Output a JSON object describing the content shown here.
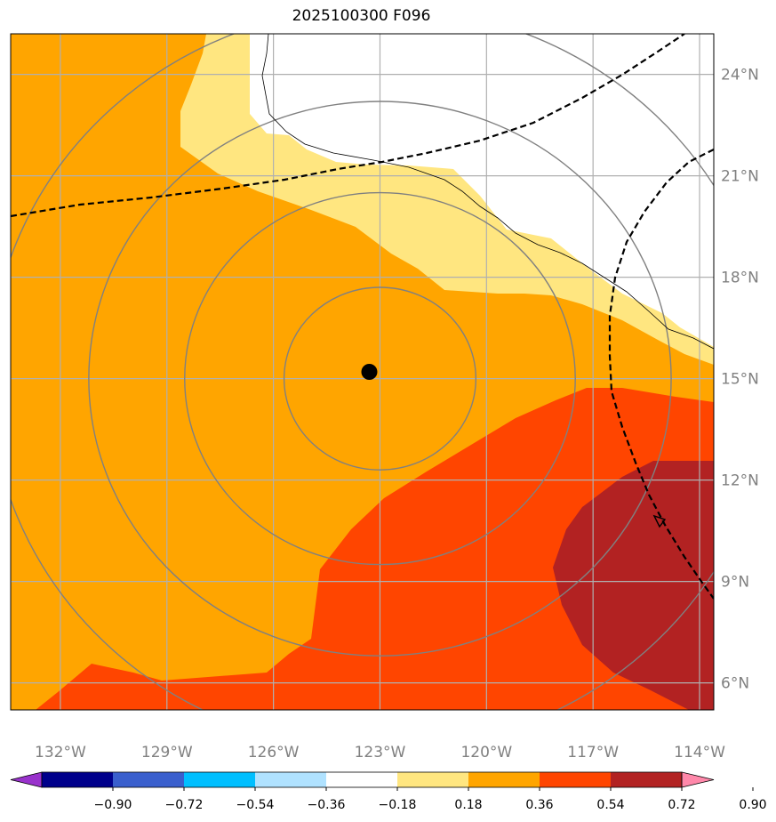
{
  "title": "2025100300 F096",
  "map": {
    "lon_range": [
      -133.4,
      -113.6
    ],
    "lat_range": [
      5.2,
      25.2
    ],
    "lon_ticks": [
      {
        "value": -132,
        "label": "132°W"
      },
      {
        "value": -129,
        "label": "129°W"
      },
      {
        "value": -126,
        "label": "126°W"
      },
      {
        "value": -123,
        "label": "123°W"
      },
      {
        "value": -120,
        "label": "120°W"
      },
      {
        "value": -117,
        "label": "117°W"
      },
      {
        "value": -114,
        "label": "114°W"
      }
    ],
    "lat_ticks": [
      {
        "value": 24,
        "label": "24°N"
      },
      {
        "value": 21,
        "label": "21°N"
      },
      {
        "value": 18,
        "label": "18°N"
      },
      {
        "value": 15,
        "label": "15°N"
      },
      {
        "value": 12,
        "label": "12°N"
      },
      {
        "value": 9,
        "label": "9°N"
      },
      {
        "value": 6,
        "label": "6°N"
      }
    ],
    "grid": true,
    "storm_center": {
      "lon": -123.3,
      "lat": 15.2
    },
    "range_rings_deg": [
      2.7,
      5.5,
      8.2,
      11.0
    ],
    "colors": {
      "gridline": "#b0b0b0",
      "ring": "#808080",
      "frame": "#000000",
      "tick_label": "#808080"
    }
  },
  "colorbar": {
    "colors": [
      "#9932cc",
      "#00008b",
      "#3a5fcd",
      "#00bfff",
      "#b0e2ff",
      "#ffffff",
      "#ffe680",
      "#ffa500",
      "#ff4500",
      "#b22222",
      "#ff88aa"
    ],
    "labels": [
      "−0.90",
      "−0.72",
      "−0.54",
      "−0.36",
      "−0.18",
      "0.18",
      "0.36",
      "0.54",
      "0.72",
      "0.90"
    ]
  }
}
